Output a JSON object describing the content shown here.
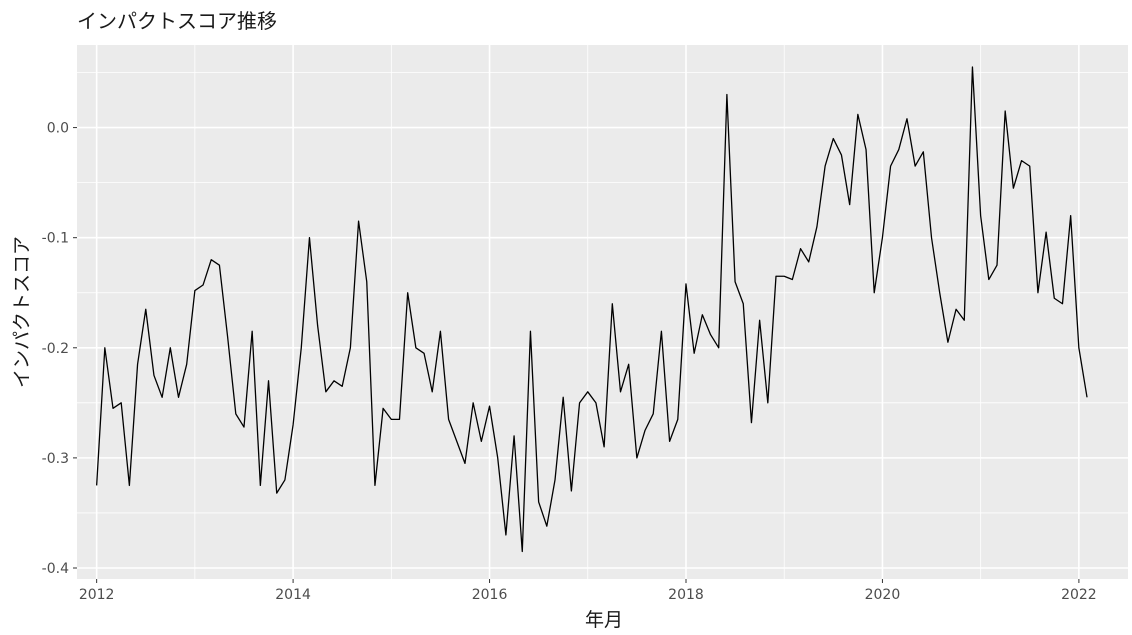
{
  "chart_data": {
    "type": "line",
    "title": "インパクトスコア推移",
    "xlabel": "年月",
    "ylabel": "インパクトスコア",
    "xlim": [
      2011.8,
      2022.5
    ],
    "ylim": [
      -0.41,
      0.075
    ],
    "x_ticks": [
      2012,
      2014,
      2016,
      2018,
      2020,
      2022
    ],
    "x_tick_labels": [
      "2012",
      "2014",
      "2016",
      "2018",
      "2020",
      "2022"
    ],
    "y_ticks": [
      0.0,
      -0.1,
      -0.2,
      -0.3,
      -0.4
    ],
    "y_tick_labels": [
      "0.0",
      "-0.1",
      "-0.2",
      "-0.3",
      "-0.4"
    ],
    "grid": true,
    "panel_background": "#ebebeb",
    "grid_color": "#ffffff",
    "line_color": "#000000",
    "series": [
      {
        "x_start": 2012.0,
        "x_step": 0.08333,
        "values": [
          -0.325,
          -0.2,
          -0.255,
          -0.25,
          -0.325,
          -0.215,
          -0.165,
          -0.225,
          -0.245,
          -0.2,
          -0.245,
          -0.215,
          -0.148,
          -0.143,
          -0.12,
          -0.125,
          -0.19,
          -0.26,
          -0.272,
          -0.185,
          -0.325,
          -0.23,
          -0.332,
          -0.32,
          -0.27,
          -0.2,
          -0.1,
          -0.18,
          -0.24,
          -0.23,
          -0.235,
          -0.2,
          -0.085,
          -0.14,
          -0.325,
          -0.255,
          -0.265,
          -0.265,
          -0.15,
          -0.2,
          -0.205,
          -0.24,
          -0.185,
          -0.265,
          -0.285,
          -0.305,
          -0.25,
          -0.285,
          -0.253,
          -0.3,
          -0.37,
          -0.28,
          -0.385,
          -0.185,
          -0.34,
          -0.362,
          -0.32,
          -0.245,
          -0.33,
          -0.25,
          -0.24,
          -0.25,
          -0.29,
          -0.16,
          -0.24,
          -0.215,
          -0.3,
          -0.275,
          -0.26,
          -0.185,
          -0.285,
          -0.265,
          -0.142,
          -0.205,
          -0.17,
          -0.188,
          -0.2,
          0.03,
          -0.14,
          -0.16,
          -0.268,
          -0.175,
          -0.25,
          -0.135,
          -0.135,
          -0.138,
          -0.11,
          -0.122,
          -0.09,
          -0.035,
          -0.01,
          -0.025,
          -0.07,
          0.012,
          -0.02,
          -0.15,
          -0.1,
          -0.035,
          -0.02,
          0.008,
          -0.035,
          -0.022,
          -0.1,
          -0.15,
          -0.195,
          -0.165,
          -0.175,
          0.055,
          -0.08,
          -0.138,
          -0.125,
          0.015,
          -0.055,
          -0.03,
          -0.035,
          -0.15,
          -0.095,
          -0.155,
          -0.16,
          -0.08,
          -0.2,
          -0.245
        ]
      }
    ]
  }
}
